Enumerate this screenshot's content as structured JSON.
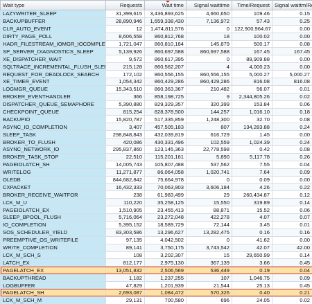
{
  "table": {
    "columns": [
      "Wait type",
      "Requests",
      "Wait time",
      "Signal waittime",
      "Time/Request",
      "Signal waittm/Req"
    ],
    "rows": [
      [
        "LAZYWRITER_SLEEP",
        "31,399,615",
        "3,436,893,625",
        "4,660,650",
        "109.46",
        "0.15"
      ],
      [
        "BACKUPBUFFER",
        "28,890,946",
        "1,659,338,430",
        "7,136,972",
        "57.43",
        "0.25"
      ],
      [
        "CLR_AUTO_EVENT",
        "12",
        "1,474,811,576",
        "0",
        "122,900,964.67",
        "0.00"
      ],
      [
        "DIRTY_PAGE_POLL",
        "8,606,558",
        "860,812,768",
        "18",
        "100.02",
        "0.00"
      ],
      [
        "HADR_FILESTREAM_IOMGR_IOCOMPLETION",
        "1,721,047",
        "860,810,184",
        "145,879",
        "500.17",
        "0.08"
      ],
      [
        "SP_SERVER_DIAGNOSTICS_SLEEP",
        "5,139,926",
        "860,697,588",
        "860,697,588",
        "167.45",
        "167.45"
      ],
      [
        "XE_DISPATCHER_WAIT",
        "9,572",
        "860,617,395",
        "0",
        "89,909.88",
        "0.00"
      ],
      [
        "SQLTRACE_INCREMENTAL_FLUSH_SLEEP",
        "215,128",
        "860,562,207",
        "4",
        "4,000.23",
        "0.00"
      ],
      [
        "REQUEST_FOR_DEADLOCK_SEARCH",
        "172,102",
        "860,556,155",
        "860,556,155",
        "5,000.27",
        "5,000.27"
      ],
      [
        "XE_TIMER_EVENT",
        "1,054,342",
        "860,429,286",
        "860,429,286",
        "816.08",
        "816.08"
      ],
      [
        "LOGMGR_QUEUE",
        "15,343,510",
        "860,363,367",
        "210,482",
        "56.07",
        "0.01"
      ],
      [
        "BROKER_EVENTHANDLER",
        "366",
        "858,198,725",
        "9",
        "2,344,805.26",
        "0.02"
      ],
      [
        "DISPATCHER_QUEUE_SEMAPHORE",
        "5,390,880",
        "829,329,357",
        "320,399",
        "153.84",
        "0.06"
      ],
      [
        "CHECKPOINT_QUEUE",
        "815,254",
        "828,378,500",
        "144,257",
        "1,016.10",
        "0.18"
      ],
      [
        "BACKUPIO",
        "15,820,787",
        "517,335,859",
        "1,248,300",
        "32.70",
        "0.08"
      ],
      [
        "ASYNC_IO_COMPLETION",
        "3,407",
        "457,505,183",
        "807",
        "134,283.88",
        "0.24"
      ],
      [
        "SLEEP_TASK",
        "298,848,843",
        "432,039,819",
        "616,729",
        "1.45",
        "0.00"
      ],
      [
        "BROKER_TO_FLUSH",
        "420,086",
        "430,331,496",
        "102,559",
        "1,024.39",
        "0.24"
      ],
      [
        "ASYNC_NETWORK_IO",
        "295,837,860",
        "123,145,363",
        "22,778,598",
        "0.42",
        "0.08"
      ],
      [
        "BROKER_TASK_STOP",
        "22,510",
        "115,201,161",
        "5,890",
        "5,117.78",
        "0.26"
      ],
      [
        "PAGEIOLATCH_SH",
        "14,005,743",
        "105,807,488",
        "537,562",
        "7.55",
        "0.04"
      ],
      [
        "WRITELOG",
        "11,271,877",
        "86,064,058",
        "1,020,741",
        "7.64",
        "0.09"
      ],
      [
        "OLEDB",
        "844,682,842",
        "75,664,978",
        "0",
        "0.09",
        "0.00"
      ],
      [
        "CXPACKET",
        "16,432,333",
        "70,063,903",
        "3,606,184",
        "4.26",
        "0.22"
      ],
      [
        "BROKER_RECEIVE_WAITFOR",
        "238",
        "61,983,499",
        "29",
        "260,434.87",
        "0.12"
      ],
      [
        "LCK_M_U",
        "110,220",
        "35,258,125",
        "15,550",
        "319.89",
        "0.14"
      ],
      [
        "PAGEIOLATCH_EX",
        "1,510,905",
        "23,455,413",
        "88,871",
        "15.52",
        "0.06"
      ],
      [
        "SLEEP_BPOOL_FLUSH",
        "5,716,064",
        "23,272,048",
        "422,278",
        "4.07",
        "0.07"
      ],
      [
        "IO_COMPLETION",
        "5,395,152",
        "18,589,729",
        "72,144",
        "3.45",
        "0.01"
      ],
      [
        "SOS_SCHEDULER_YIELD",
        "83,303,586",
        "13,296,627",
        "13,282,475",
        "0.16",
        "0.16"
      ],
      [
        "PREEMPTIVE_OS_WRITEFILE",
        "97,135",
        "4,042,502",
        "0",
        "41.62",
        "0.00"
      ],
      [
        "WRITE_COMPLETION",
        "89,141",
        "3,750,175",
        "3,743,542",
        "42.07",
        "42.00"
      ],
      [
        "LCK_M_SCH_S",
        "108",
        "3,202,307",
        "15",
        "29,650.99",
        "0.14"
      ],
      [
        "LATCH_EX",
        "812,177",
        "2,975,130",
        "367,139",
        "3.66",
        "0.45"
      ],
      [
        "PAGELATCH_EX",
        "13,051,832",
        "2,506,569",
        "536,449",
        "0.19",
        "0.04"
      ],
      [
        "BACKUPTHREAD",
        "1,182",
        "1,237,255",
        "107",
        "1,046.75",
        "0.09"
      ],
      [
        "LOGBUFFER",
        "47,829",
        "1,201,939",
        "21,544",
        "25.13",
        "0.45"
      ],
      [
        "PAGELATCH_SH",
        "2,693,087",
        "1,084,472",
        "570,326",
        "0.40",
        "0.21"
      ],
      [
        "LCK_M_SCH_M",
        "29,131",
        "700,580",
        "696",
        "24.05",
        "0.02"
      ]
    ]
  }
}
